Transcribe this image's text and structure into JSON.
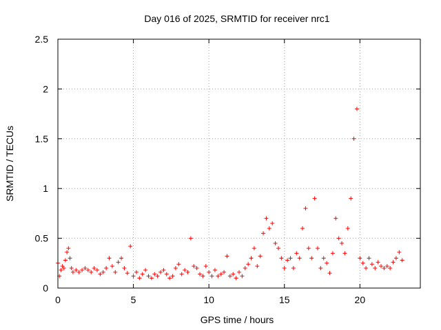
{
  "chart_data": {
    "type": "scatter",
    "title": "Day 016 of 2025, SRMTID for receiver nrc1",
    "xlabel": "GPS time / hours",
    "ylabel": "SRMTID / TECUs",
    "xlim": [
      0,
      24
    ],
    "ylim": [
      0,
      2.5
    ],
    "xticks": [
      0,
      5,
      10,
      15,
      20
    ],
    "yticks": [
      0,
      0.5,
      1,
      1.5,
      2,
      2.5
    ],
    "xtick_labels": [
      "0",
      "5",
      "10",
      "15",
      "20"
    ],
    "ytick_labels": [
      "0",
      "0.5",
      "1",
      "1.5",
      "2",
      "2.5"
    ],
    "grid": true,
    "marker": "+",
    "series": [
      {
        "name": "SRMTID",
        "color": "#ff0000",
        "x": [
          0.0,
          0.1,
          0.2,
          0.3,
          0.4,
          0.5,
          0.6,
          0.7,
          0.8,
          0.9,
          1.0,
          1.2,
          1.4,
          1.6,
          1.8,
          2.0,
          2.2,
          2.4,
          2.6,
          2.8,
          3.0,
          3.2,
          3.4,
          3.6,
          3.8,
          4.0,
          4.2,
          4.4,
          4.6,
          4.8,
          5.0,
          5.2,
          5.4,
          5.6,
          5.8,
          6.0,
          6.2,
          6.4,
          6.6,
          6.8,
          7.0,
          7.2,
          7.4,
          7.6,
          7.8,
          8.0,
          8.2,
          8.4,
          8.6,
          8.8,
          9.0,
          9.2,
          9.4,
          9.6,
          9.8,
          10.0,
          10.2,
          10.4,
          10.6,
          10.8,
          11.0,
          11.2,
          11.4,
          11.6,
          11.8,
          12.0,
          12.2,
          12.4,
          12.6,
          12.8,
          13.0,
          13.2,
          13.4,
          13.6,
          13.8,
          14.0,
          14.2,
          14.4,
          14.6,
          14.8,
          15.0,
          15.2,
          15.4,
          15.6,
          15.8,
          16.0,
          16.2,
          16.4,
          16.6,
          16.8,
          17.0,
          17.2,
          17.4,
          17.6,
          17.8,
          18.0,
          18.2,
          18.4,
          18.6,
          18.8,
          19.0,
          19.2,
          19.4,
          19.6,
          19.8,
          20.0,
          20.2,
          20.4,
          20.6,
          20.8,
          21.0,
          21.2,
          21.4,
          21.6,
          21.8,
          22.0,
          22.2,
          22.4,
          22.6,
          22.8
        ],
        "y": [
          0.25,
          0.12,
          0.18,
          0.22,
          0.2,
          0.28,
          0.36,
          0.4,
          0.3,
          0.2,
          0.16,
          0.18,
          0.16,
          0.18,
          0.2,
          0.18,
          0.16,
          0.2,
          0.18,
          0.14,
          0.16,
          0.2,
          0.3,
          0.22,
          0.16,
          0.26,
          0.3,
          0.2,
          0.15,
          0.42,
          0.12,
          0.16,
          0.1,
          0.14,
          0.18,
          0.12,
          0.1,
          0.14,
          0.12,
          0.16,
          0.18,
          0.14,
          0.1,
          0.12,
          0.2,
          0.24,
          0.14,
          0.18,
          0.16,
          0.5,
          0.22,
          0.2,
          0.14,
          0.12,
          0.22,
          0.16,
          0.12,
          0.18,
          0.12,
          0.14,
          0.16,
          0.32,
          0.12,
          0.14,
          0.1,
          0.16,
          0.12,
          0.2,
          0.24,
          0.3,
          0.4,
          0.22,
          0.32,
          0.55,
          0.7,
          0.6,
          0.65,
          0.45,
          0.4,
          0.3,
          0.2,
          0.28,
          0.3,
          0.2,
          0.35,
          0.3,
          0.6,
          0.8,
          0.4,
          0.3,
          0.9,
          0.4,
          0.2,
          0.3,
          0.25,
          0.15,
          0.35,
          0.7,
          0.5,
          0.45,
          0.35,
          0.6,
          0.9,
          1.5,
          1.8,
          0.3,
          0.25,
          0.2,
          0.3,
          0.24,
          0.2,
          0.26,
          0.22,
          0.2,
          0.22,
          0.2,
          0.26,
          0.3,
          0.36,
          0.28
        ]
      }
    ]
  }
}
